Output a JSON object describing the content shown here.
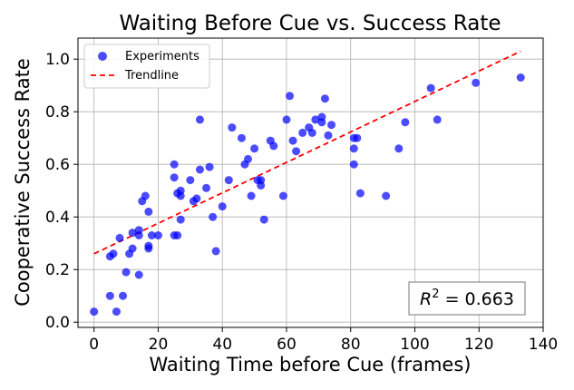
{
  "chart_data": {
    "type": "scatter",
    "title": "Waiting Before Cue vs. Success Rate",
    "xlabel": "Waiting Time before Cue (frames)",
    "ylabel": "Cooperative Success Rate",
    "xlim": [
      -5,
      140
    ],
    "ylim": [
      -0.02,
      1.08
    ],
    "xticks": [
      0,
      20,
      40,
      60,
      80,
      100,
      120,
      140
    ],
    "yticks": [
      0.0,
      0.2,
      0.4,
      0.6,
      0.8,
      1.0
    ],
    "xtick_labels": [
      "0",
      "20",
      "40",
      "60",
      "80",
      "100",
      "120",
      "140"
    ],
    "ytick_labels": [
      "0.0",
      "0.2",
      "0.4",
      "0.6",
      "0.8",
      "1.0"
    ],
    "grid": true,
    "legend_position": "top-left",
    "series": [
      {
        "name": "Experiments",
        "kind": "scatter",
        "color": "#0000ff",
        "points": [
          [
            0,
            0.04
          ],
          [
            5,
            0.1
          ],
          [
            5,
            0.25
          ],
          [
            6,
            0.26
          ],
          [
            7,
            0.04
          ],
          [
            8,
            0.32
          ],
          [
            9,
            0.1
          ],
          [
            10,
            0.19
          ],
          [
            11,
            0.26
          ],
          [
            12,
            0.28
          ],
          [
            12,
            0.34
          ],
          [
            14,
            0.33
          ],
          [
            14,
            0.18
          ],
          [
            14,
            0.35
          ],
          [
            15,
            0.46
          ],
          [
            16,
            0.48
          ],
          [
            17,
            0.42
          ],
          [
            17,
            0.28
          ],
          [
            17,
            0.29
          ],
          [
            18,
            0.33
          ],
          [
            20,
            0.33
          ],
          [
            25,
            0.33
          ],
          [
            25,
            0.6
          ],
          [
            25,
            0.55
          ],
          [
            26,
            0.49
          ],
          [
            26,
            0.33
          ],
          [
            27,
            0.39
          ],
          [
            27,
            0.48
          ],
          [
            27,
            0.5
          ],
          [
            30,
            0.54
          ],
          [
            31,
            0.46
          ],
          [
            32,
            0.47
          ],
          [
            33,
            0.58
          ],
          [
            33,
            0.77
          ],
          [
            35,
            0.51
          ],
          [
            36,
            0.59
          ],
          [
            37,
            0.4
          ],
          [
            38,
            0.27
          ],
          [
            40,
            0.44
          ],
          [
            42,
            0.54
          ],
          [
            43,
            0.74
          ],
          [
            46,
            0.7
          ],
          [
            47,
            0.6
          ],
          [
            48,
            0.62
          ],
          [
            49,
            0.48
          ],
          [
            50,
            0.66
          ],
          [
            51,
            0.54
          ],
          [
            52,
            0.52
          ],
          [
            52,
            0.54
          ],
          [
            53,
            0.39
          ],
          [
            55,
            0.69
          ],
          [
            56,
            0.67
          ],
          [
            59,
            0.48
          ],
          [
            60,
            0.77
          ],
          [
            61,
            0.86
          ],
          [
            62,
            0.69
          ],
          [
            63,
            0.65
          ],
          [
            65,
            0.72
          ],
          [
            67,
            0.74
          ],
          [
            68,
            0.72
          ],
          [
            69,
            0.77
          ],
          [
            71,
            0.76
          ],
          [
            71,
            0.78
          ],
          [
            72,
            0.85
          ],
          [
            73,
            0.71
          ],
          [
            74,
            0.75
          ],
          [
            81,
            0.6
          ],
          [
            81,
            0.66
          ],
          [
            81,
            0.7
          ],
          [
            82,
            0.7
          ],
          [
            83,
            0.49
          ],
          [
            91,
            0.48
          ],
          [
            95,
            0.66
          ],
          [
            97,
            0.76
          ],
          [
            105,
            0.89
          ],
          [
            107,
            0.77
          ],
          [
            119,
            0.91
          ],
          [
            133,
            0.93
          ]
        ]
      },
      {
        "name": "Trendline",
        "kind": "line",
        "style": "dashed",
        "color": "#ff0000",
        "points": [
          [
            0,
            0.26
          ],
          [
            133,
            1.03
          ]
        ]
      }
    ],
    "annotation": "R^2 = 0.663"
  }
}
